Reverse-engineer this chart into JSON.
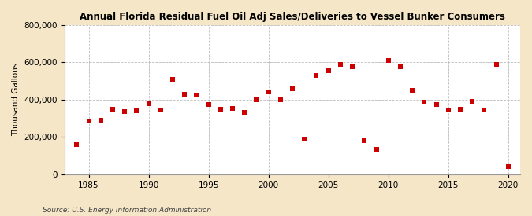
{
  "title": "Annual Florida Residual Fuel Oil Adj Sales/Deliveries to Vessel Bunker Consumers",
  "ylabel": "Thousand Gallons",
  "source_text": "Source: U.S. Energy Information Administration",
  "figure_background_color": "#f5e6c8",
  "plot_background_color": "#ffffff",
  "marker_color": "#cc0000",
  "marker": "s",
  "marker_size": 4,
  "xlim": [
    1983,
    2021
  ],
  "ylim": [
    0,
    800000
  ],
  "yticks": [
    0,
    200000,
    400000,
    600000,
    800000
  ],
  "xticks": [
    1985,
    1990,
    1995,
    2000,
    2005,
    2010,
    2015,
    2020
  ],
  "years": [
    1984,
    1985,
    1986,
    1987,
    1988,
    1989,
    1990,
    1991,
    1992,
    1993,
    1994,
    1995,
    1996,
    1997,
    1998,
    1999,
    2000,
    2001,
    2002,
    2003,
    2004,
    2005,
    2006,
    2007,
    2008,
    2009,
    2010,
    2011,
    2012,
    2013,
    2014,
    2015,
    2016,
    2017,
    2018,
    2019,
    2020
  ],
  "values": [
    160000,
    285000,
    290000,
    350000,
    335000,
    340000,
    380000,
    345000,
    510000,
    430000,
    425000,
    375000,
    350000,
    355000,
    330000,
    400000,
    440000,
    400000,
    460000,
    190000,
    530000,
    555000,
    590000,
    575000,
    180000,
    135000,
    610000,
    575000,
    450000,
    385000,
    375000,
    345000,
    350000,
    390000,
    345000,
    590000,
    40000
  ]
}
